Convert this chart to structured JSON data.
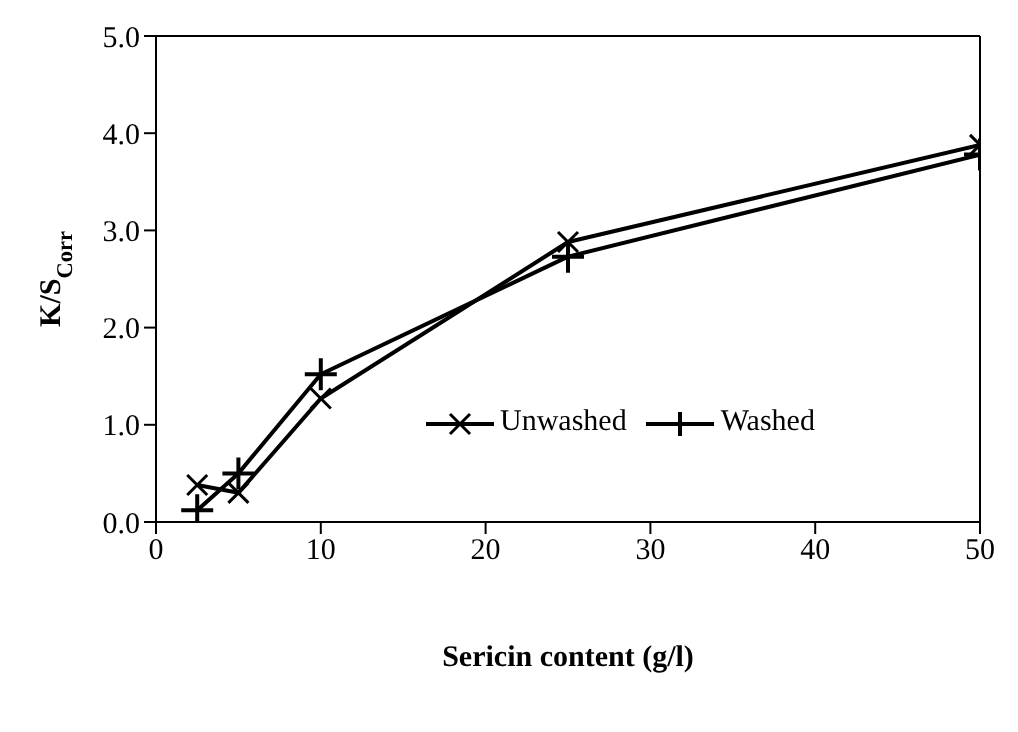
{
  "chart_data": {
    "type": "line",
    "xlabel": "Sericin content (g/l)",
    "ylabel": "K/S$_{Corr}$",
    "x": [
      2.5,
      5,
      10,
      25,
      50
    ],
    "series": [
      {
        "name": "Unwashed",
        "color": "#000000",
        "values": [
          0.38,
          0.3,
          1.27,
          2.88,
          3.88
        ],
        "marker": "x"
      },
      {
        "name": "Washed",
        "color": "#000000",
        "values": [
          0.12,
          0.5,
          1.52,
          2.73,
          3.78
        ],
        "marker": "cross"
      }
    ],
    "xlim": [
      0,
      50
    ],
    "xticks": [
      0,
      10,
      20,
      30,
      40,
      50
    ],
    "ylim": [
      0,
      5
    ],
    "yticks": [
      {
        "value": 0,
        "label": "0.0"
      },
      {
        "value": 1,
        "label": "1.0"
      },
      {
        "value": 2,
        "label": "2.0"
      },
      {
        "value": 3,
        "label": "3.0"
      },
      {
        "value": 4,
        "label": "4.0"
      },
      {
        "value": 5,
        "label": "5.0"
      }
    ],
    "grid": false,
    "legend": "right",
    "line_style": "solid"
  }
}
